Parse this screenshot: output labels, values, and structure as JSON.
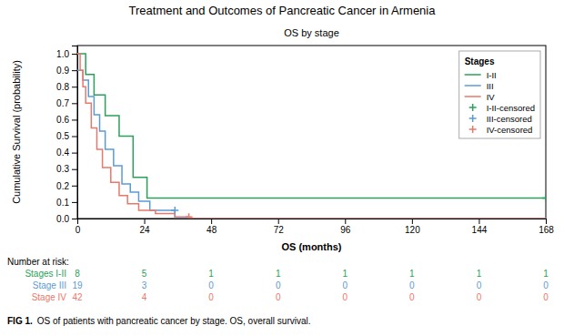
{
  "chart_data": {
    "type": "line",
    "title": "Treatment and Outcomes of Pancreatic Cancer in Armenia",
    "subtitle": "OS by stage",
    "xlabel": "OS (months)",
    "ylabel": "Cumulative Survival (probability)",
    "legend_title": "Stages",
    "legend": "upper right",
    "grid": false,
    "xlim": [
      0,
      168
    ],
    "ylim": [
      0.0,
      1.05
    ],
    "xticks": [
      0,
      24,
      48,
      72,
      96,
      120,
      144,
      168
    ],
    "yticks": [
      {
        "value": 0.0,
        "label": "0.0"
      },
      0.1,
      0.2,
      0.3,
      0.4,
      0.5,
      0.6,
      0.7,
      0.8,
      0.9,
      {
        "value": 1.0,
        "label": "1.0"
      }
    ],
    "series": [
      {
        "name": "I-II",
        "type": "line",
        "color": "#2ca05a",
        "x": [
          0,
          3,
          3,
          6,
          6,
          10,
          10,
          15,
          15,
          20,
          20,
          25,
          25,
          30,
          30,
          168
        ],
        "values": [
          1.0,
          1.0,
          0.875,
          0.875,
          0.75,
          0.75,
          0.625,
          0.625,
          0.5,
          0.5,
          0.25,
          0.25,
          0.125,
          0.125,
          0.125,
          0.125
        ]
      },
      {
        "name": "III",
        "type": "line",
        "color": "#5b9bd5",
        "x": [
          0,
          2,
          2,
          4,
          4,
          6,
          6,
          8,
          8,
          10,
          10,
          13,
          13,
          16,
          16,
          19,
          19,
          22,
          22,
          26,
          26,
          30,
          30,
          35,
          35,
          168
        ],
        "values": [
          0.9,
          0.9,
          0.84,
          0.84,
          0.74,
          0.74,
          0.63,
          0.63,
          0.53,
          0.53,
          0.42,
          0.42,
          0.32,
          0.32,
          0.21,
          0.21,
          0.16,
          0.16,
          0.105,
          0.105,
          0.05,
          0.05,
          0.05,
          0.05,
          0.0,
          0.0
        ]
      },
      {
        "name": "IV",
        "type": "line",
        "color": "#e8796a",
        "x": [
          0,
          1,
          1,
          2,
          2,
          3,
          3,
          5,
          5,
          7,
          7,
          9,
          9,
          12,
          12,
          15,
          15,
          18,
          18,
          22,
          22,
          28,
          28,
          35,
          35,
          40,
          40,
          168
        ],
        "values": [
          1.0,
          1.0,
          0.9,
          0.9,
          0.8,
          0.8,
          0.7,
          0.7,
          0.55,
          0.55,
          0.42,
          0.42,
          0.31,
          0.31,
          0.22,
          0.22,
          0.14,
          0.14,
          0.09,
          0.09,
          0.05,
          0.05,
          0.03,
          0.03,
          0.01,
          0.01,
          0.0,
          0.0
        ]
      },
      {
        "name": "I-II-censored",
        "type": "scatter",
        "marker": "plus",
        "color": "#2ca05a",
        "x": [
          168
        ],
        "values": [
          0.125
        ]
      },
      {
        "name": "III-censored",
        "type": "scatter",
        "marker": "plus",
        "color": "#5b9bd5",
        "x": [
          35
        ],
        "values": [
          0.05
        ]
      },
      {
        "name": "IV-censored",
        "type": "scatter",
        "marker": "plus",
        "color": "#e8796a",
        "x": [
          40
        ],
        "values": [
          0.01
        ]
      }
    ],
    "risk_table": {
      "title": "Number at risk:",
      "x": [
        0,
        24,
        48,
        72,
        96,
        120,
        144,
        168
      ],
      "rows": [
        {
          "name": "Stages I-II",
          "color": "#2ca05a",
          "values": [
            8,
            5,
            1,
            1,
            1,
            1,
            1,
            1
          ]
        },
        {
          "name": "Stage III",
          "color": "#5b9bd5",
          "values": [
            19,
            3,
            0,
            0,
            0,
            0,
            0,
            0
          ]
        },
        {
          "name": "Stage IV",
          "color": "#e8796a",
          "values": [
            42,
            4,
            0,
            0,
            0,
            0,
            0,
            0
          ]
        }
      ]
    },
    "annotations": [
      "FIG 1.",
      "OS of patients with pancreatic cancer by stage. OS, overall survival."
    ]
  }
}
